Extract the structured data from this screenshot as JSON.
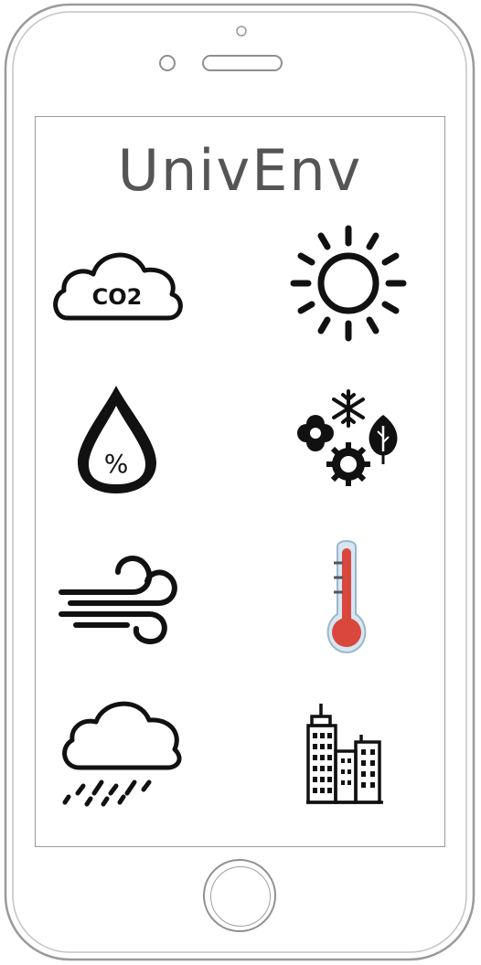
{
  "app": {
    "title": "UnivEnv"
  },
  "tiles": [
    {
      "id": "co2",
      "icon": "co2-cloud-icon",
      "label": "CO2"
    },
    {
      "id": "sun",
      "icon": "sun-icon"
    },
    {
      "id": "humidity",
      "icon": "humidity-drop-icon",
      "label": "%"
    },
    {
      "id": "seasons",
      "icon": "seasons-weather-icon"
    },
    {
      "id": "wind",
      "icon": "wind-icon"
    },
    {
      "id": "temperature",
      "icon": "thermometer-icon"
    },
    {
      "id": "rain",
      "icon": "rain-cloud-icon"
    },
    {
      "id": "city",
      "icon": "city-buildings-icon"
    }
  ],
  "colors": {
    "thermo_red": "#d9473d",
    "thermo_glass": "#d7e6f2",
    "outline": "#111111",
    "title": "#555555"
  }
}
